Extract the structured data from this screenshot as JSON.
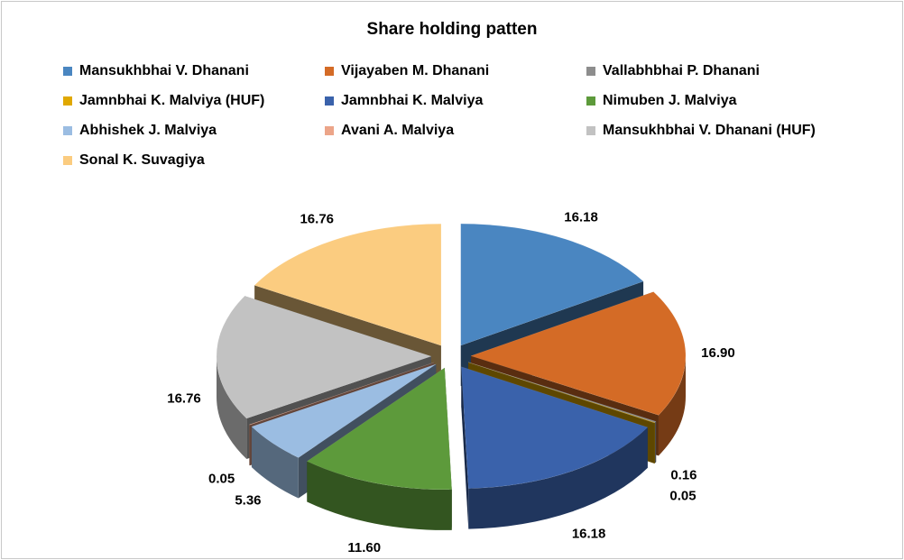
{
  "chart_data": {
    "type": "pie",
    "title": "Share holding patten",
    "legend_position": "top",
    "categories": [
      "Mansukhbhai V. Dhanani",
      "Vijayaben M. Dhanani",
      "Vallabhbhai P. Dhanani",
      "Jamnbhai K. Malviya (HUF)",
      "Jamnbhai K. Malviya",
      "Nimuben J. Malviya",
      "Abhishek J. Malviya",
      "Avani A. Malviya",
      "Mansukhbhai V. Dhanani (HUF)",
      "Sonal K. Suvagiya"
    ],
    "values": [
      16.18,
      16.9,
      0.16,
      0.05,
      16.18,
      11.6,
      5.36,
      0.05,
      16.76,
      16.76
    ],
    "labels": [
      "16.18",
      "16.90",
      "0.16",
      "0.05",
      "16.18",
      "11.60",
      "5.36",
      "0.05",
      "16.76",
      "16.76"
    ],
    "colors": [
      "#4a86c1",
      "#d46b26",
      "#8d8d8d",
      "#e0a800",
      "#3a62ab",
      "#5d9a3b",
      "#9bbde2",
      "#eca589",
      "#c2c2c2",
      "#fbcc80"
    ]
  }
}
